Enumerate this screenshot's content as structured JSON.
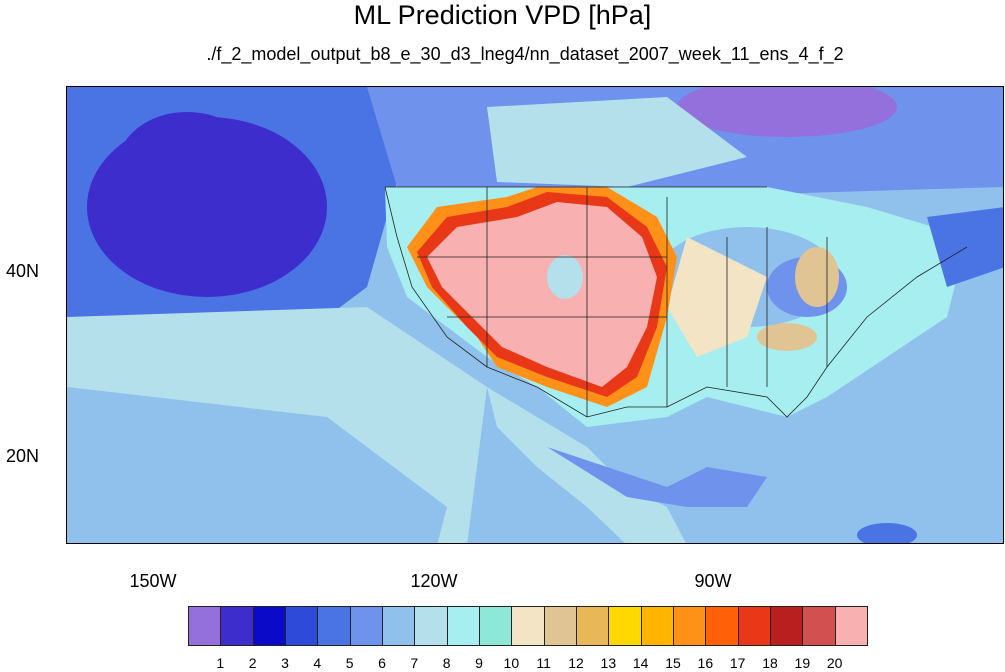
{
  "title": "ML Prediction VPD [hPa]",
  "subtitle": "./f_2_model_output_b8_e_30_d3_lneg4/nn_dataset_2007_week_11_ens_4_f_2",
  "lat_labels": [
    "40N",
    "20N"
  ],
  "lon_labels": [
    "150W",
    "120W",
    "90W"
  ],
  "colorbar": {
    "levels": [
      "1",
      "2",
      "3",
      "4",
      "5",
      "6",
      "7",
      "8",
      "9",
      "10",
      "11",
      "12",
      "13",
      "14",
      "15",
      "16",
      "17",
      "18",
      "19",
      "20"
    ],
    "colors": [
      "#9370db",
      "#3d2dcc",
      "#0a0ac8",
      "#2e4ad8",
      "#4a74e4",
      "#6f92ec",
      "#90c0ec",
      "#b4e0ec",
      "#a6eef0",
      "#8ee8d8",
      "#f2e4c4",
      "#e0c494",
      "#e8b858",
      "#ffd800",
      "#ffb400",
      "#ff9018",
      "#ff6008",
      "#e83818",
      "#b82020",
      "#d25050",
      "#f8b0b0"
    ]
  },
  "map": {
    "projection": "cylindrical equidistant",
    "lon_range": [
      -159,
      -60
    ],
    "lat_range": [
      10,
      59
    ],
    "features": [
      "coastlines",
      "us-state-boundaries",
      "country-boundaries"
    ]
  }
}
